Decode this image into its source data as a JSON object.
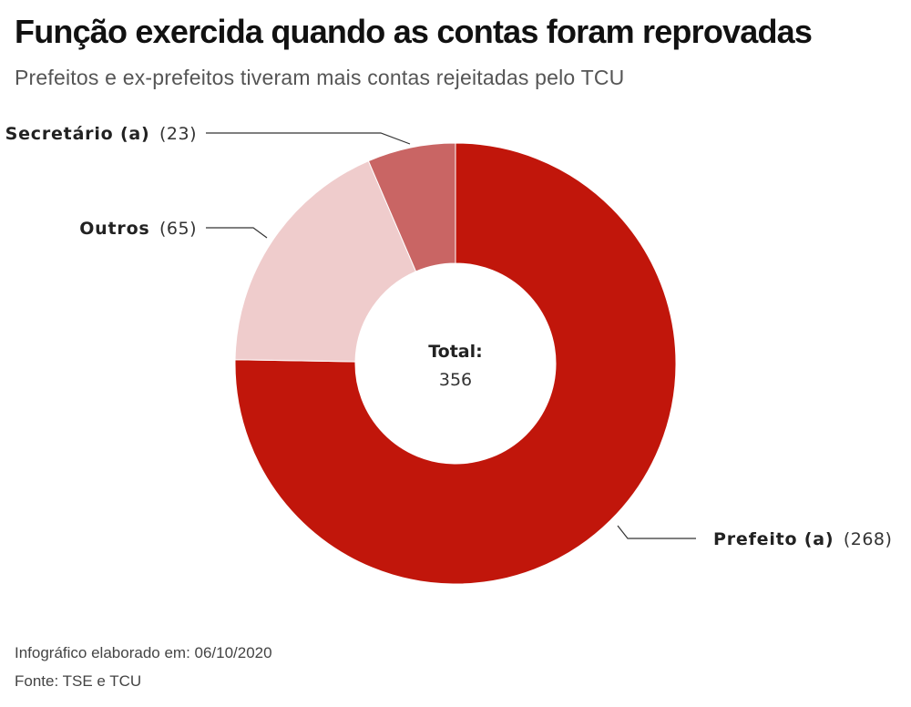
{
  "title": "Função exercida quando as contas foram reprovadas",
  "subtitle": "Prefeitos e ex-prefeitos tiveram mais contas rejeitadas pelo TCU",
  "chart_data": {
    "type": "pie",
    "variant": "donut",
    "slices": [
      {
        "name": "Prefeito (a)",
        "value": 268,
        "value_label": "(268)",
        "color": "#c1160b"
      },
      {
        "name": "Outros",
        "value": 65,
        "value_label": "(65)",
        "color": "#efcccc"
      },
      {
        "name": "Secretário (a)",
        "value": 23,
        "value_label": "(23)",
        "color": "#c96564"
      }
    ],
    "center_label": "Total:",
    "center_value": "356"
  },
  "footer": {
    "date": "Infográfico elaborado em: 06/10/2020",
    "source": "Fonte: TSE e TCU"
  }
}
